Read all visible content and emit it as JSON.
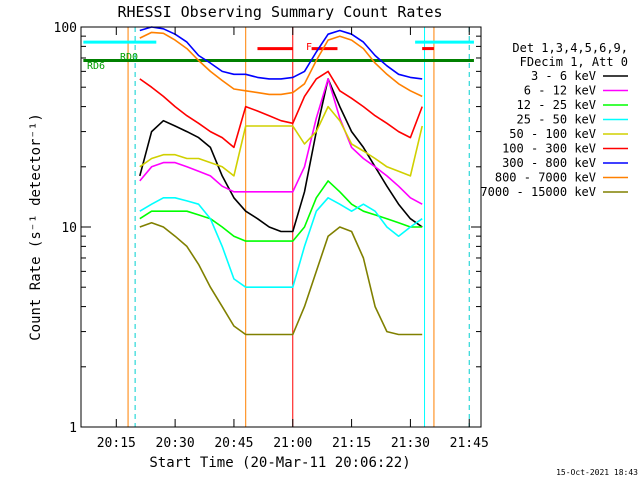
{
  "chart_data": {
    "type": "line",
    "title": "RHESSI Observing Summary Count Rates",
    "xlabel": "Start Time (20-Mar-11 20:06:22)",
    "ylabel": "Count Rate (s⁻¹ detector⁻¹)",
    "yscale": "log",
    "ylim": [
      1,
      100
    ],
    "xlim_minutes": [
      20.1,
      21.8
    ],
    "x_unit": "hours (decimal, UT on 20-Mar-11)",
    "x_ticks": [
      {
        "value": 20.25,
        "label": "20:15"
      },
      {
        "value": 20.5,
        "label": "20:30"
      },
      {
        "value": 20.75,
        "label": "20:45"
      },
      {
        "value": 21.0,
        "label": "21:00"
      },
      {
        "value": 21.25,
        "label": "21:15"
      },
      {
        "value": 21.5,
        "label": "21:30"
      },
      {
        "value": 21.75,
        "label": "21:45"
      }
    ],
    "y_ticks": [
      {
        "value": 1,
        "label": "1"
      },
      {
        "value": 10,
        "label": "10"
      },
      {
        "value": 100,
        "label": "100"
      }
    ],
    "grid": false,
    "legend_placement": "right",
    "legend_header": [
      "Det 1,3,4,5,6,9,",
      "FDecim 1, Att 0"
    ],
    "timestamp": "15-Oct-2021 18:43",
    "annotations": [
      {
        "text": "RD0",
        "color": "#00a000"
      },
      {
        "text": "RD6",
        "color": "#00a000"
      },
      {
        "text": "F",
        "color": "#ff0000"
      }
    ],
    "flags": [
      {
        "name": "cyan-flag",
        "color": "#00ffff",
        "x": [
          20.11,
          20.42
        ],
        "y": 84
      },
      {
        "name": "green-flag",
        "color": "#008000",
        "x": [
          20.11,
          21.77
        ],
        "y": 68
      },
      {
        "name": "red-flag-1",
        "color": "#ff0000",
        "x": [
          20.85,
          21.0
        ],
        "y": 78
      },
      {
        "name": "red-flag-2",
        "color": "#ff0000",
        "x": [
          21.08,
          21.19
        ],
        "y": 78
      },
      {
        "name": "red-flag-3",
        "color": "#ff0000",
        "x": [
          21.55,
          21.6
        ],
        "y": 78
      },
      {
        "name": "cyan-flag-2",
        "color": "#00ffff",
        "x": [
          21.52,
          21.77
        ],
        "y": 84
      }
    ],
    "vlines": [
      {
        "x": 20.33,
        "color": "#00d0d0",
        "dashed": true
      },
      {
        "x": 21.75,
        "color": "#00d0d0",
        "dashed": true
      },
      {
        "x": 20.3,
        "color": "#ff8000",
        "dashed": false
      },
      {
        "x": 20.8,
        "color": "#ff8000",
        "dashed": false
      },
      {
        "x": 21.0,
        "color": "#ff0000",
        "dashed": false
      },
      {
        "x": 21.56,
        "color": "#00ffff",
        "dashed": false
      },
      {
        "x": 21.6,
        "color": "#ff8000",
        "dashed": false
      }
    ],
    "x": [
      20.3,
      20.35,
      20.4,
      20.45,
      20.5,
      20.55,
      20.6,
      20.65,
      20.7,
      20.75,
      20.8,
      20.85,
      20.9,
      20.95,
      21.0,
      21.05,
      21.1,
      21.15,
      21.2,
      21.25,
      21.3,
      21.35,
      21.4,
      21.45,
      21.5,
      21.55
    ],
    "series": [
      {
        "name": "3 - 6 keV",
        "color": "#000000",
        "values": [
          null,
          18,
          30,
          34,
          32,
          30,
          28,
          25,
          18,
          14,
          12,
          11,
          10,
          9.5,
          9.5,
          15,
          30,
          55,
          40,
          30,
          25,
          20,
          16,
          13,
          11,
          10
        ]
      },
      {
        "name": "6 - 12 keV",
        "color": "#ff00ff",
        "values": [
          null,
          17,
          20,
          21,
          21,
          20,
          19,
          18,
          16,
          15,
          15,
          15,
          15,
          15,
          15,
          20,
          35,
          55,
          35,
          25,
          22,
          20,
          18,
          16,
          14,
          13
        ]
      },
      {
        "name": "12 - 25 keV",
        "color": "#00ff00",
        "values": [
          null,
          11,
          12,
          12,
          12,
          12,
          11.5,
          11,
          10,
          9,
          8.5,
          8.5,
          8.5,
          8.5,
          8.5,
          10,
          14,
          17,
          15,
          13,
          12,
          11.5,
          11,
          10.5,
          10,
          10
        ]
      },
      {
        "name": "25 - 50 keV",
        "color": "#00ffff",
        "values": [
          null,
          12,
          13,
          14,
          14,
          13.5,
          13,
          11,
          8,
          5.5,
          5,
          5,
          5,
          5,
          5,
          8,
          12,
          14,
          13,
          12,
          13,
          12,
          10,
          9,
          10,
          11
        ]
      },
      {
        "name": "50 - 100 keV",
        "color": "#d0d000",
        "values": [
          null,
          20,
          22,
          23,
          23,
          22,
          22,
          21,
          20,
          18,
          32,
          32,
          32,
          32,
          32,
          26,
          30,
          40,
          34,
          26,
          24,
          22,
          20,
          19,
          18,
          32
        ]
      },
      {
        "name": "100 - 300 keV",
        "color": "#ff0000",
        "values": [
          null,
          55,
          50,
          45,
          40,
          36,
          33,
          30,
          28,
          25,
          40,
          38,
          36,
          34,
          33,
          45,
          55,
          60,
          48,
          44,
          40,
          36,
          33,
          30,
          28,
          40
        ]
      },
      {
        "name": "300 - 800 keV",
        "color": "#0000ff",
        "values": [
          null,
          96,
          100,
          98,
          92,
          84,
          72,
          66,
          60,
          58,
          58,
          56,
          55,
          55,
          56,
          60,
          75,
          92,
          96,
          92,
          84,
          72,
          64,
          58,
          56,
          55
        ]
      },
      {
        "name": "800 - 7000 keV",
        "color": "#ff8000",
        "values": [
          null,
          88,
          94,
          93,
          86,
          78,
          68,
          60,
          54,
          49,
          48,
          47,
          46,
          46,
          47,
          52,
          68,
          86,
          90,
          86,
          78,
          66,
          58,
          52,
          48,
          45
        ]
      },
      {
        "name": "7000 - 15000 keV",
        "color": "#808000",
        "values": [
          null,
          10,
          10.5,
          10,
          9,
          8,
          6.5,
          5,
          4,
          3.2,
          2.9,
          2.9,
          2.9,
          2.9,
          2.9,
          4,
          6,
          9,
          10,
          9.5,
          7,
          4,
          3,
          2.9,
          2.9,
          2.9
        ]
      }
    ]
  }
}
